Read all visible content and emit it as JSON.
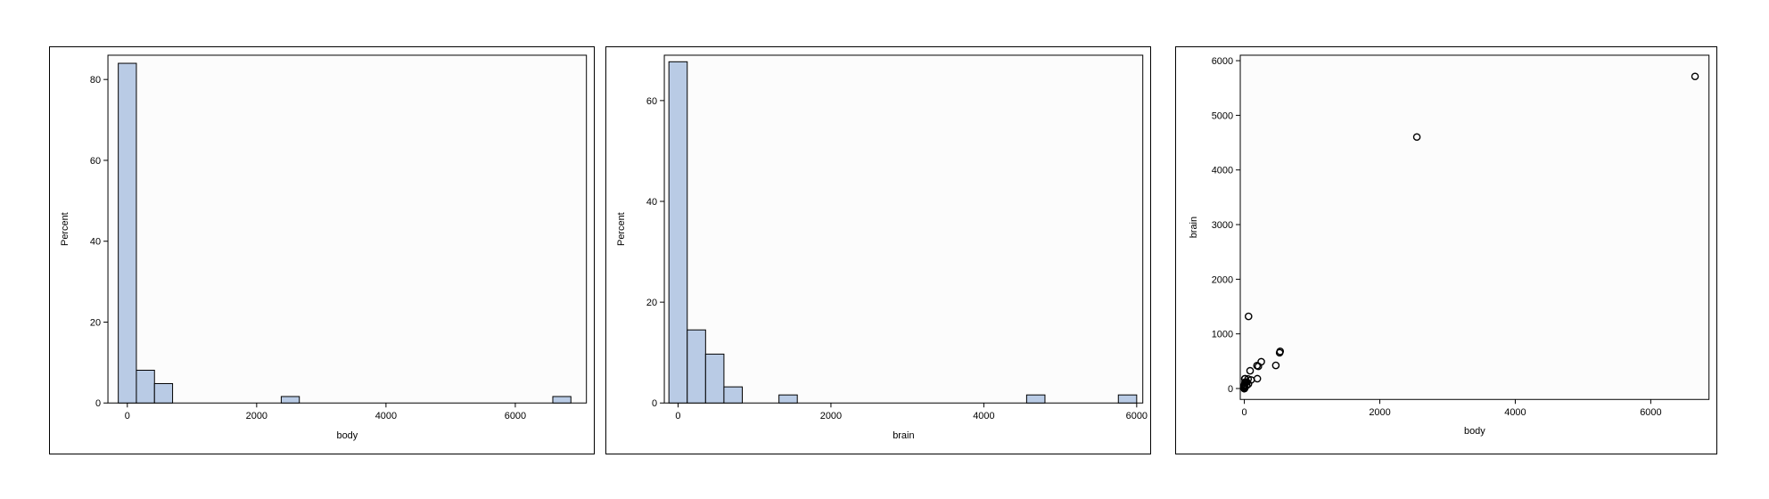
{
  "chart_data": [
    {
      "type": "bar",
      "title": "",
      "xlabel": "body",
      "ylabel": "Percent",
      "bin_width": 280,
      "bins": [
        {
          "start": -140,
          "end": 140,
          "percent": 84
        },
        {
          "start": 140,
          "end": 420,
          "percent": 8.1
        },
        {
          "start": 420,
          "end": 700,
          "percent": 4.8
        },
        {
          "start": 2380,
          "end": 2660,
          "percent": 1.6
        },
        {
          "start": 6580,
          "end": 6860,
          "percent": 1.6
        }
      ],
      "xlim": [
        -300,
        7100
      ],
      "ylim": [
        0,
        86
      ],
      "x_ticks": [
        0,
        2000,
        4000,
        6000
      ],
      "x_tick_labels": [
        "0",
        "2000",
        "4000",
        "6000"
      ],
      "y_ticks": [
        0,
        20,
        40,
        60,
        80
      ],
      "y_tick_labels": [
        "0",
        "20",
        "40",
        "60",
        "80"
      ],
      "bar_color": "#b9cbe5",
      "grid": false
    },
    {
      "type": "bar",
      "title": "",
      "xlabel": "brain",
      "ylabel": "Percent",
      "bin_width": 240,
      "bins": [
        {
          "start": -120,
          "end": 120,
          "percent": 67.7
        },
        {
          "start": 120,
          "end": 360,
          "percent": 14.5
        },
        {
          "start": 360,
          "end": 600,
          "percent": 9.7
        },
        {
          "start": 600,
          "end": 840,
          "percent": 3.2
        },
        {
          "start": 1320,
          "end": 1560,
          "percent": 1.6
        },
        {
          "start": 4560,
          "end": 4800,
          "percent": 1.6
        },
        {
          "start": 5760,
          "end": 6000,
          "percent": 1.6
        }
      ],
      "xlim": [
        -180,
        6080
      ],
      "ylim": [
        0,
        69
      ],
      "x_ticks": [
        0,
        2000,
        4000,
        6000
      ],
      "x_tick_labels": [
        "0",
        "2000",
        "4000",
        "6000"
      ],
      "y_ticks": [
        0,
        20,
        40,
        60
      ],
      "y_tick_labels": [
        "0",
        "20",
        "40",
        "60"
      ],
      "bar_color": "#b9cbe5",
      "grid": false
    },
    {
      "type": "scatter",
      "title": "",
      "xlabel": "body",
      "ylabel": "brain",
      "x": [
        6654,
        2547,
        62,
        521,
        529,
        465,
        207,
        187,
        192,
        250,
        36,
        10.5,
        55.5,
        100,
        85,
        60,
        35,
        27.66,
        14.83,
        6.8,
        3.5,
        4.235,
        10,
        1.04,
        0.425,
        0.101,
        0.92,
        1,
        0.005,
        0.06,
        3.3,
        2,
        1.4,
        4.19,
        0.75,
        3.385,
        0.48,
        0.023,
        0.785,
        0.2,
        1.35,
        0.3,
        4.05,
        4.288,
        0.55,
        0.048,
        0.12,
        0.01,
        0.104,
        0.28,
        1.62,
        2.5,
        0.023,
        0.122,
        0.75
      ],
      "y": [
        5712,
        4603,
        1320,
        655,
        680,
        423,
        406,
        419,
        180,
        490,
        119.5,
        179,
        175,
        157,
        325,
        81,
        56,
        115,
        98.2,
        179,
        72,
        50.4,
        115,
        5.5,
        6.4,
        4,
        5.7,
        6.6,
        0.14,
        1,
        25.6,
        12.3,
        12.5,
        58,
        12.1,
        44.5,
        15.5,
        0.3,
        3.5,
        5,
        8.1,
        3.5,
        17,
        39.2,
        2.4,
        0.33,
        3,
        0.25,
        2.5,
        1.9,
        11.4,
        12.1,
        0.4,
        3,
        12.3
      ],
      "xlim": [
        -60,
        6860
      ],
      "ylim": [
        -200,
        6100
      ],
      "x_ticks": [
        0,
        2000,
        4000,
        6000
      ],
      "x_tick_labels": [
        "0",
        "2000",
        "4000",
        "6000"
      ],
      "y_ticks": [
        0,
        1000,
        2000,
        3000,
        4000,
        5000,
        6000
      ],
      "y_tick_labels": [
        "0",
        "1000",
        "2000",
        "3000",
        "4000",
        "5000",
        "6000"
      ],
      "marker": "open-circle",
      "grid": false
    }
  ]
}
